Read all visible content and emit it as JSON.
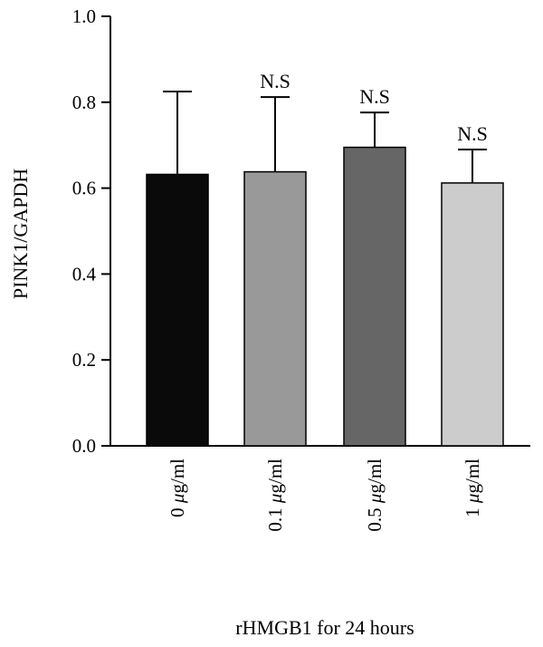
{
  "chart_data": {
    "type": "bar",
    "title": "",
    "xlabel": "rHMGB1 for 24 hours",
    "ylabel": "PINK1/GAPDH",
    "ylim": [
      0,
      1.0
    ],
    "yticks": [
      "0.0",
      "0.2",
      "0.4",
      "0.6",
      "0.8",
      "1.0"
    ],
    "grid": false,
    "categories": [
      {
        "num": "0",
        "mu": "μ",
        "unit": "g/ml"
      },
      {
        "num": "0.1",
        "mu": "μ",
        "unit": "g/ml"
      },
      {
        "num": "0.5",
        "mu": "μ",
        "unit": "g/ml"
      },
      {
        "num": "1",
        "mu": "μ",
        "unit": "g/ml"
      }
    ],
    "values": [
      0.632,
      0.638,
      0.695,
      0.612
    ],
    "error_upper": [
      0.825,
      0.812,
      0.776,
      0.69
    ],
    "annotations": [
      "",
      "N.S",
      "N.S",
      "N.S"
    ],
    "colors": [
      "#0a0a0a",
      "#999999",
      "#666666",
      "#cccccc"
    ]
  }
}
